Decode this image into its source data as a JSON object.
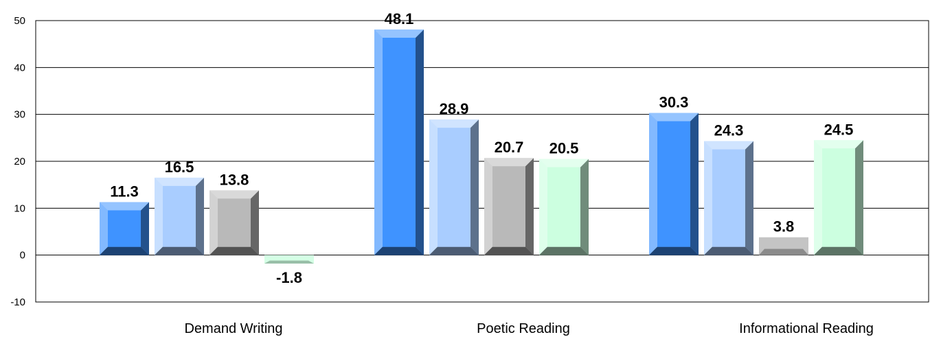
{
  "chart_data": {
    "type": "bar",
    "categories": [
      "Demand Writing",
      "Poetic Reading",
      "Informational Reading"
    ],
    "series": [
      {
        "values": [
          11.3,
          48.1,
          30.3
        ],
        "color": "#3f93ff"
      },
      {
        "values": [
          16.5,
          28.9,
          24.3
        ],
        "color": "#a9cdff"
      },
      {
        "values": [
          13.8,
          20.7,
          3.8
        ],
        "color": "#b9b9b9"
      },
      {
        "values": [
          -1.8,
          20.5,
          24.5
        ],
        "color": "#ccffe0"
      }
    ],
    "ylim": [
      -10,
      50
    ],
    "yticks": [
      -10,
      0,
      10,
      20,
      30,
      40,
      50
    ],
    "grid": true,
    "legend": "none",
    "style": "3d-bars"
  }
}
